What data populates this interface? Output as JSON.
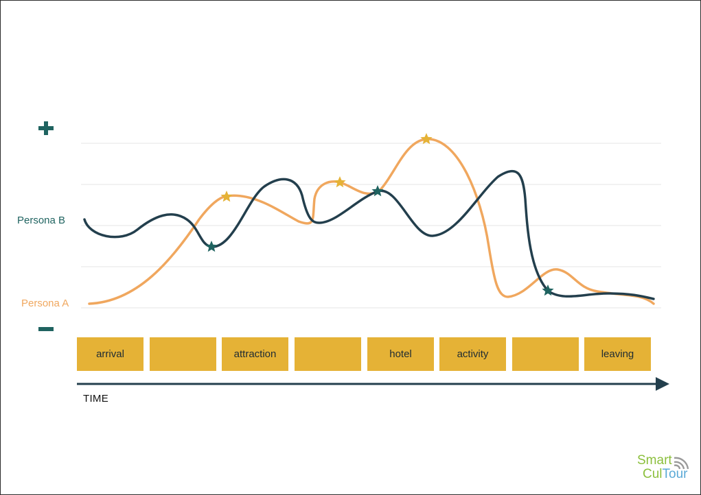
{
  "axis": {
    "plus_symbol": "+",
    "minus_symbol": "−",
    "time_label": "TIME"
  },
  "personas": [
    {
      "name": "Persona A",
      "color": "#f0a75e",
      "star_color": "#e5b236"
    },
    {
      "name": "Persona B",
      "color": "#233f4d",
      "star_color": "#1f6360"
    }
  ],
  "stages": [
    "arrival",
    "",
    "attraction",
    "",
    "hotel",
    "activity",
    "",
    "leaving"
  ],
  "colors": {
    "stage_fill": "#e5b236",
    "gridline": "#e6e6e6",
    "arrow": "#233f4d",
    "accent_teal": "#1f6360"
  },
  "logo": {
    "word1": "Smart",
    "word2_a": "Cul",
    "word2_b": "Tour"
  }
}
